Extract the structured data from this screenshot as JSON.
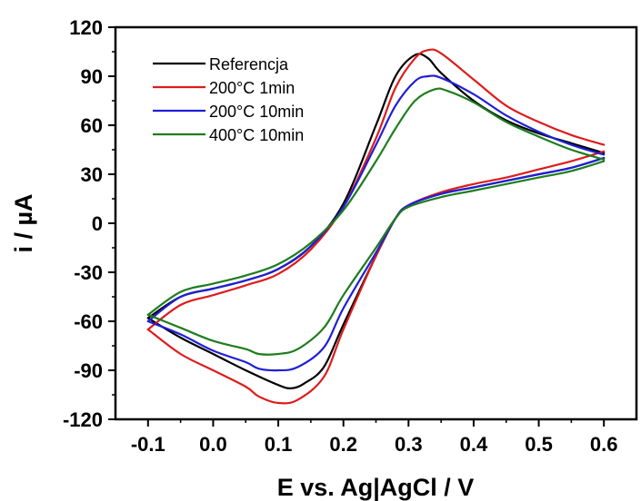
{
  "chart_data": {
    "type": "line",
    "xlabel": "E vs. Ag|AgCl / V",
    "ylabel": "i / µA",
    "xlim": [
      -0.15,
      0.65
    ],
    "ylim": [
      -120,
      120
    ],
    "x_ticks": [
      -0.1,
      0.0,
      0.1,
      0.2,
      0.3,
      0.4,
      0.5,
      0.6
    ],
    "x_tick_labels": [
      "-0.1",
      "0.0",
      "0.1",
      "0.2",
      "0.3",
      "0.4",
      "0.5",
      "0.6"
    ],
    "y_ticks": [
      -120,
      -90,
      -60,
      -30,
      0,
      30,
      60,
      90,
      120
    ],
    "y_tick_labels": [
      "-120",
      "-90",
      "-60",
      "-30",
      "0",
      "30",
      "60",
      "90",
      "120"
    ],
    "legend_position": "top-left",
    "grid": false,
    "series": [
      {
        "name": "Referencja",
        "color": "#000000",
        "anodic": [
          [
            -0.1,
            -58
          ],
          [
            -0.05,
            -45
          ],
          [
            0.0,
            -40
          ],
          [
            0.05,
            -35
          ],
          [
            0.1,
            -28
          ],
          [
            0.15,
            -14
          ],
          [
            0.2,
            12
          ],
          [
            0.25,
            60
          ],
          [
            0.28,
            90
          ],
          [
            0.31,
            103
          ],
          [
            0.33,
            101
          ],
          [
            0.35,
            92
          ],
          [
            0.4,
            75
          ],
          [
            0.45,
            63
          ],
          [
            0.5,
            55
          ],
          [
            0.55,
            49
          ],
          [
            0.6,
            43
          ]
        ],
        "cathodic": [
          [
            0.6,
            40
          ],
          [
            0.55,
            34
          ],
          [
            0.5,
            30
          ],
          [
            0.45,
            26
          ],
          [
            0.4,
            22
          ],
          [
            0.35,
            18
          ],
          [
            0.3,
            11
          ],
          [
            0.28,
            3
          ],
          [
            0.25,
            -20
          ],
          [
            0.2,
            -62
          ],
          [
            0.17,
            -88
          ],
          [
            0.14,
            -98
          ],
          [
            0.12,
            -101
          ],
          [
            0.1,
            -99
          ],
          [
            0.05,
            -90
          ],
          [
            0.0,
            -80
          ],
          [
            -0.05,
            -70
          ],
          [
            -0.1,
            -58
          ]
        ]
      },
      {
        "name": "200°C 1min",
        "color": "#dd1c1c",
        "anodic": [
          [
            -0.1,
            -65
          ],
          [
            -0.05,
            -50
          ],
          [
            0.0,
            -44
          ],
          [
            0.05,
            -38
          ],
          [
            0.1,
            -31
          ],
          [
            0.15,
            -16
          ],
          [
            0.2,
            10
          ],
          [
            0.25,
            52
          ],
          [
            0.28,
            83
          ],
          [
            0.31,
            101
          ],
          [
            0.33,
            106
          ],
          [
            0.35,
            104
          ],
          [
            0.4,
            88
          ],
          [
            0.45,
            72
          ],
          [
            0.5,
            62
          ],
          [
            0.55,
            54
          ],
          [
            0.6,
            48
          ]
        ],
        "cathodic": [
          [
            0.6,
            44
          ],
          [
            0.55,
            38
          ],
          [
            0.5,
            33
          ],
          [
            0.45,
            28
          ],
          [
            0.4,
            24
          ],
          [
            0.35,
            19
          ],
          [
            0.3,
            11
          ],
          [
            0.28,
            3
          ],
          [
            0.25,
            -20
          ],
          [
            0.2,
            -65
          ],
          [
            0.17,
            -94
          ],
          [
            0.13,
            -108
          ],
          [
            0.1,
            -110
          ],
          [
            0.07,
            -106
          ],
          [
            0.05,
            -100
          ],
          [
            0.0,
            -90
          ],
          [
            -0.05,
            -80
          ],
          [
            -0.1,
            -65
          ]
        ]
      },
      {
        "name": "200°C 10min",
        "color": "#1f1fd6",
        "anodic": [
          [
            -0.1,
            -60
          ],
          [
            -0.05,
            -45
          ],
          [
            0.0,
            -40
          ],
          [
            0.05,
            -35
          ],
          [
            0.1,
            -28
          ],
          [
            0.15,
            -14
          ],
          [
            0.2,
            10
          ],
          [
            0.25,
            48
          ],
          [
            0.28,
            72
          ],
          [
            0.31,
            87
          ],
          [
            0.33,
            90
          ],
          [
            0.35,
            89
          ],
          [
            0.4,
            79
          ],
          [
            0.45,
            66
          ],
          [
            0.5,
            56
          ],
          [
            0.55,
            48
          ],
          [
            0.6,
            42
          ]
        ],
        "cathodic": [
          [
            0.6,
            40
          ],
          [
            0.55,
            34
          ],
          [
            0.5,
            30
          ],
          [
            0.45,
            26
          ],
          [
            0.4,
            22
          ],
          [
            0.35,
            18
          ],
          [
            0.3,
            11
          ],
          [
            0.28,
            3
          ],
          [
            0.25,
            -18
          ],
          [
            0.2,
            -52
          ],
          [
            0.17,
            -76
          ],
          [
            0.13,
            -88
          ],
          [
            0.1,
            -90
          ],
          [
            0.07,
            -89
          ],
          [
            0.05,
            -85
          ],
          [
            0.0,
            -78
          ],
          [
            -0.05,
            -68
          ],
          [
            -0.1,
            -60
          ]
        ]
      },
      {
        "name": "400°C 10min",
        "color": "#1e7d1e",
        "anodic": [
          [
            -0.1,
            -56
          ],
          [
            -0.05,
            -42
          ],
          [
            0.0,
            -37
          ],
          [
            0.05,
            -32
          ],
          [
            0.1,
            -25
          ],
          [
            0.15,
            -12
          ],
          [
            0.2,
            8
          ],
          [
            0.25,
            38
          ],
          [
            0.28,
            58
          ],
          [
            0.31,
            75
          ],
          [
            0.34,
            82
          ],
          [
            0.36,
            81
          ],
          [
            0.4,
            74
          ],
          [
            0.45,
            62
          ],
          [
            0.5,
            53
          ],
          [
            0.55,
            45
          ],
          [
            0.6,
            39
          ]
        ],
        "cathodic": [
          [
            0.6,
            38
          ],
          [
            0.55,
            32
          ],
          [
            0.5,
            28
          ],
          [
            0.45,
            24
          ],
          [
            0.4,
            20
          ],
          [
            0.35,
            16
          ],
          [
            0.3,
            10
          ],
          [
            0.28,
            3
          ],
          [
            0.25,
            -15
          ],
          [
            0.2,
            -44
          ],
          [
            0.17,
            -64
          ],
          [
            0.13,
            -77
          ],
          [
            0.1,
            -80
          ],
          [
            0.07,
            -80
          ],
          [
            0.05,
            -77
          ],
          [
            0.0,
            -72
          ],
          [
            -0.05,
            -64
          ],
          [
            -0.1,
            -56
          ]
        ]
      }
    ]
  }
}
